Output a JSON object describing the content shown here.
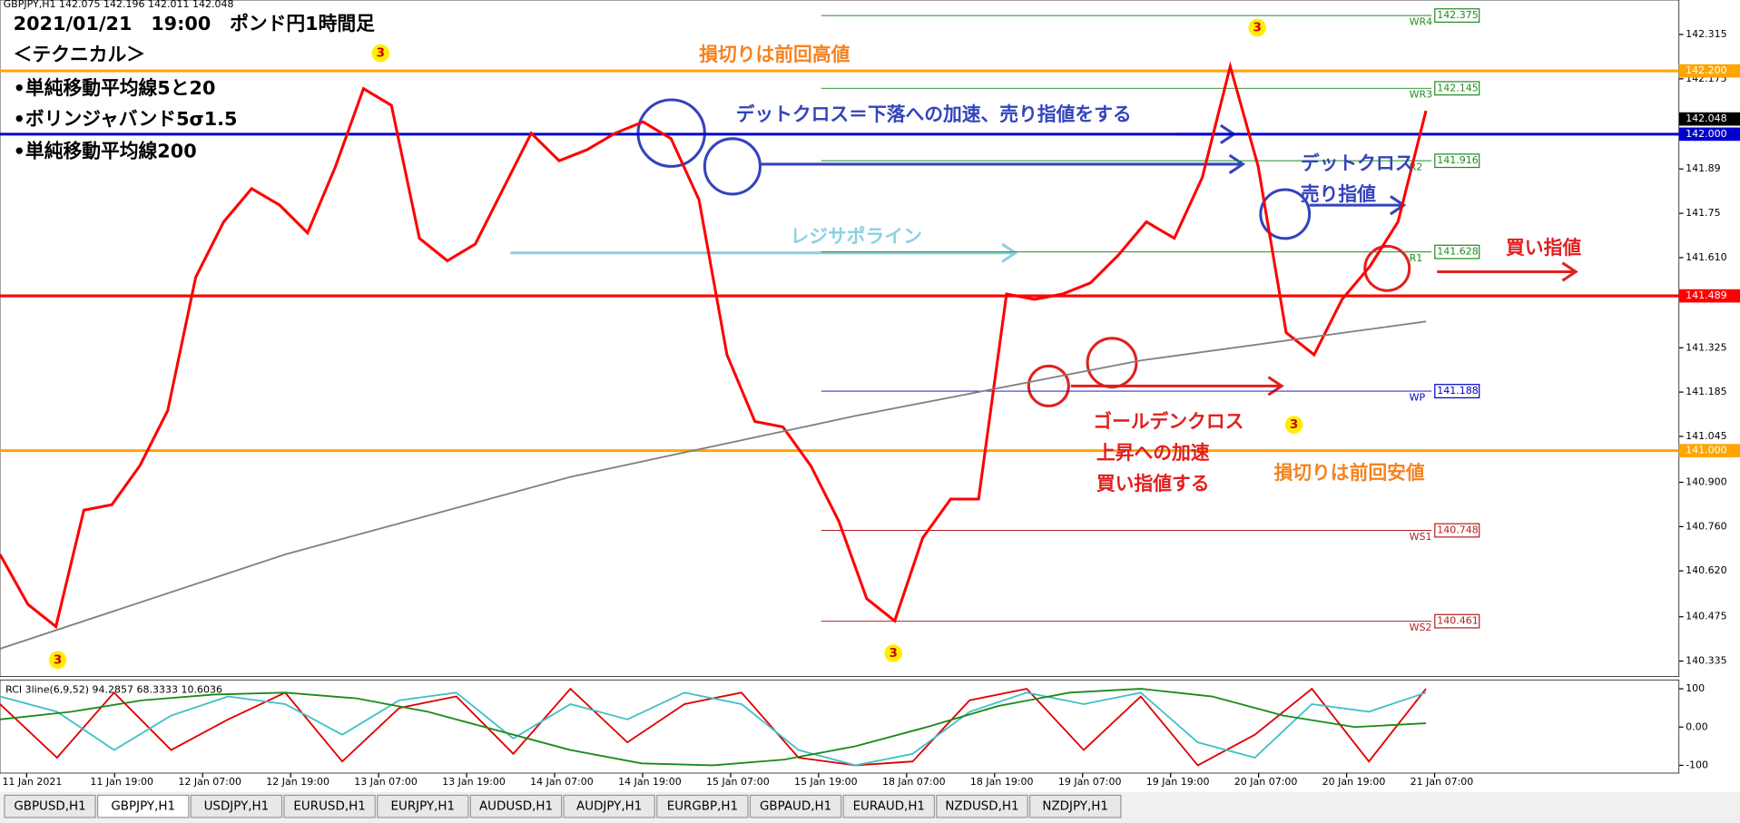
{
  "header": {
    "symbol_info": "GBPJPY,H1  142.075 142.196 142.011 142.048"
  },
  "notes": [
    "＜テクニカル＞",
    "•単純移動平均線5と20",
    "•ボリンジャバンド5σ1.5",
    "•単純移動平均線200"
  ],
  "annotations": [
    {
      "text": "損切りは前回高値",
      "color": "#f58220"
    },
    {
      "text": "デットクロス＝下落への加速、売り指値をする",
      "color": "#3344bb"
    },
    {
      "text": "レジサポライン",
      "color": "#8fd0e0"
    },
    {
      "text": "デットクロス",
      "color": "#3344bb"
    },
    {
      "text": "売り指値",
      "color": "#3344bb"
    },
    {
      "text": "買い指値",
      "color": "#e02020"
    },
    {
      "text": "ゴールデンクロス",
      "color": "#e02020"
    },
    {
      "text": "上昇への加速",
      "color": "#e02020"
    },
    {
      "text": "買い指値する",
      "color": "#e02020"
    },
    {
      "text": "損切りは前回安値",
      "color": "#f58220"
    }
  ],
  "markers": [
    "3",
    "3",
    "3",
    "3",
    "3"
  ],
  "chart_data": [
    {
      "type": "line",
      "title": "2021/01/21　19:00　ポンド円1時間足",
      "xtick_labels": [
        "11 Jan 2021",
        "11 Jan 19:00",
        "12 Jan 07:00",
        "12 Jan 19:00",
        "13 Jan 07:00",
        "13 Jan 19:00",
        "14 Jan 07:00",
        "14 Jan 19:00",
        "15 Jan 07:00",
        "15 Jan 19:00",
        "18 Jan 07:00",
        "18 Jan 19:00",
        "19 Jan 07:00",
        "19 Jan 19:00",
        "20 Jan 07:00",
        "20 Jan 19:00",
        "21 Jan 07:00"
      ],
      "series": [
        {
          "color": "#ff0000",
          "values": [
            140.672,
            140.514,
            140.444,
            140.812,
            140.829,
            140.952,
            141.127,
            141.548,
            141.723,
            141.828,
            141.776,
            141.688,
            141.898,
            142.144,
            142.091,
            141.671,
            141.6,
            141.653,
            141.828,
            142.003,
            141.916,
            141.951,
            142.003,
            142.039,
            141.986,
            141.793,
            141.303,
            141.092,
            141.075,
            140.952,
            140.777,
            140.532,
            140.462,
            140.724,
            140.847,
            140.847,
            141.495,
            141.478,
            141.495,
            141.53,
            141.618,
            141.723,
            141.671,
            141.863,
            142.214,
            141.898,
            141.373,
            141.303,
            141.478,
            141.583,
            141.723,
            142.074
          ]
        },
        {
          "color": "#808080",
          "values": [
            140.374,
            140.672,
            140.917,
            141.11,
            141.285,
            141.408
          ]
        }
      ],
      "ylim": [
        140.286,
        142.424
      ],
      "yticks": [
        142.315,
        142.175,
        141.89,
        141.75,
        {
          "value": 141.61,
          "label": "141.610"
        },
        141.325,
        141.185,
        141.045,
        {
          "value": 140.9,
          "label": "140.900"
        },
        {
          "value": 140.76,
          "label": "140.760"
        },
        {
          "value": 140.62,
          "label": "140.620"
        },
        140.475,
        140.335
      ],
      "grid": false,
      "levels": [
        {
          "value": 142.2,
          "label": "142.200",
          "color": "#ffa500"
        },
        {
          "value": 142.0,
          "label": "142.000",
          "color": "#0000cc"
        },
        {
          "value": 141.489,
          "label": "141.489",
          "color": "#ff0000"
        },
        {
          "value": 141.0,
          "label": "141.000",
          "color": "#ffa500"
        }
      ],
      "pivots": [
        {
          "name": "WR4",
          "value": 142.375,
          "label": "142.375",
          "color": "#228b22"
        },
        {
          "name": "WR3",
          "value": 142.145,
          "label": "142.145",
          "color": "#228b22"
        },
        {
          "name": "R2",
          "value": 141.916,
          "label": "141.916",
          "color": "#228b22"
        },
        {
          "name": "R1",
          "value": 141.628,
          "label": "141.628",
          "color": "#228b22"
        },
        {
          "name": "WP",
          "value": 141.188,
          "label": "141.188",
          "color": "#0000cc"
        },
        {
          "name": "WS1",
          "value": 140.748,
          "label": "140.748",
          "color": "#b22222"
        },
        {
          "name": "WS2",
          "value": 140.461,
          "label": "140.461",
          "color": "#b22222"
        }
      ],
      "last": {
        "value": 142.048,
        "label": "142.048"
      }
    },
    {
      "type": "line",
      "title": "RCI 3line(6,9,52) 94.2857 68.3333 10.6036",
      "series": [
        {
          "color": "#e00000",
          "values": [
            60,
            -80,
            90,
            -60,
            20,
            90,
            -90,
            50,
            80,
            -70,
            100,
            -40,
            60,
            90,
            -80,
            -100,
            -90,
            70,
            100,
            -60,
            80,
            -100,
            -20,
            100,
            -90,
            100
          ]
        },
        {
          "color": "#40c0c8",
          "values": [
            80,
            40,
            -60,
            30,
            80,
            60,
            -20,
            70,
            90,
            -30,
            60,
            20,
            90,
            60,
            -60,
            -100,
            -70,
            40,
            90,
            60,
            90,
            -40,
            -80,
            60,
            40,
            90
          ]
        },
        {
          "color": "#1a8a1a",
          "values": [
            20,
            40,
            70,
            85,
            90,
            75,
            40,
            -10,
            -60,
            -95,
            -100,
            -85,
            -50,
            0,
            55,
            90,
            100,
            80,
            30,
            0,
            10
          ]
        }
      ],
      "ylim": [
        -100,
        100
      ],
      "yticks": [
        100,
        {
          "value": 0,
          "label": "0.00"
        },
        -100
      ]
    }
  ],
  "tabs": [
    "GBPUSD,H1",
    "GBPJPY,H1",
    "USDJPY,H1",
    "EURUSD,H1",
    "EURJPY,H1",
    "AUDUSD,H1",
    "AUDJPY,H1",
    "EURGBP,H1",
    "GBPAUD,H1",
    "EURAUD,H1",
    "NZDUSD,H1",
    "NZDJPY,H1"
  ],
  "active_tab": 1
}
